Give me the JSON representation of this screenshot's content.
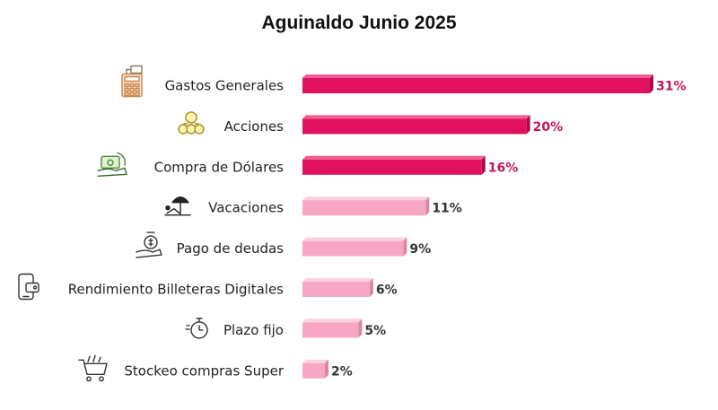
{
  "chart_data": {
    "type": "bar",
    "orientation": "horizontal",
    "title": "Aguinaldo Junio 2025",
    "xlabel": "",
    "ylabel": "",
    "grid": false,
    "legend": "none",
    "xlim": [
      0,
      31
    ],
    "categories": [
      "Gastos Generales",
      "Acciones",
      "Compra de Dólares",
      "Vacaciones",
      "Pago de deudas",
      "Rendimiento Billeteras Digitales",
      "Plazo fijo",
      "Stockeo compras Super"
    ],
    "values": [
      31,
      20,
      16,
      11,
      9,
      6,
      5,
      2
    ],
    "data_labels": [
      "31%",
      "20%",
      "16%",
      "11%",
      "9%",
      "6%",
      "5%",
      "2%"
    ],
    "icons": [
      "calculator-money-icon",
      "money-bags-icon",
      "hand-cash-icon",
      "beach-umbrella-icon",
      "hand-coin-icon",
      "mobile-wallet-icon",
      "stopwatch-icon",
      "shopping-cart-icon"
    ],
    "colors": {
      "highlight_bar": "#e0115f",
      "highlight_bar_top": "#f25c8e",
      "highlight_bar_side": "#a80c46",
      "highlight_label": "#c2185b",
      "normal_bar": "#f7a6c4",
      "normal_bar_top": "#fbd0e0",
      "normal_bar_side": "#d987a6",
      "normal_label": "#333333"
    },
    "highlight_count": 3
  }
}
